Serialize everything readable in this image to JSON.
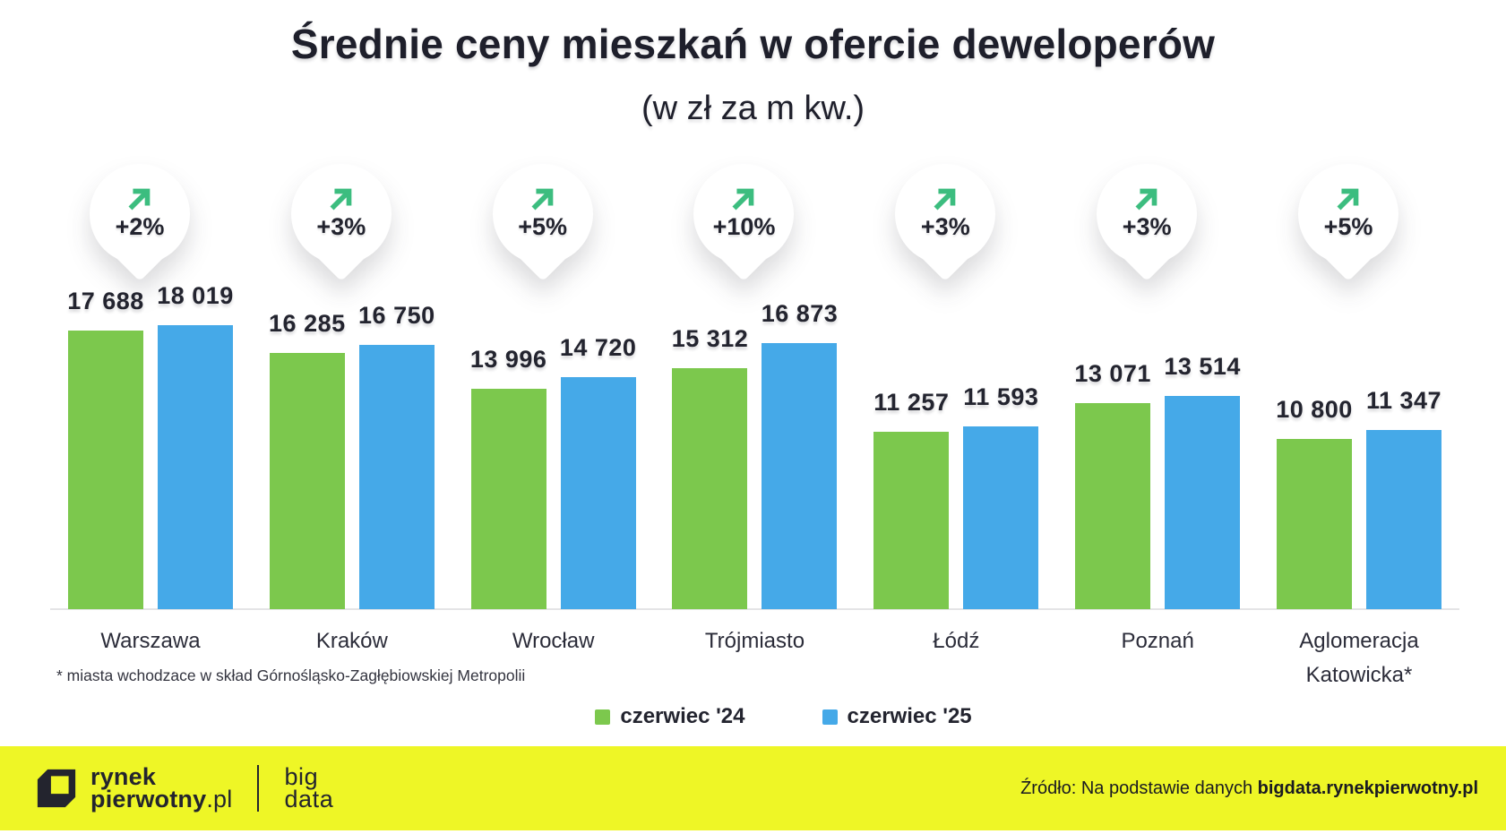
{
  "title": "Średnie ceny mieszkań w ofercie deweloperów",
  "subtitle": "(w zł za m kw.)",
  "footnote": "* miasta wchodzace w skład Górnośląsko-Zagłębiowskiej Metropolii",
  "legend": [
    {
      "label": "czerwiec '24",
      "color": "#7cc84d"
    },
    {
      "label": "czerwiec '25",
      "color": "#45a9e8"
    }
  ],
  "chart_data": {
    "type": "bar",
    "title": "Średnie ceny mieszkań w ofercie deweloperów (w zł za m kw.)",
    "categories": [
      "Warszawa",
      "Kraków",
      "Wrocław",
      "Trójmiasto",
      "Łódź",
      "Poznań",
      "Aglomeracja Katowicka*"
    ],
    "series": [
      {
        "name": "czerwiec '24",
        "color": "#7cc84d",
        "values": [
          17688,
          16285,
          13996,
          15312,
          11257,
          13071,
          10800
        ]
      },
      {
        "name": "czerwiec '25",
        "color": "#45a9e8",
        "values": [
          18019,
          16750,
          14720,
          16873,
          11593,
          13514,
          11347
        ]
      }
    ],
    "changes": [
      "+2%",
      "+3%",
      "+5%",
      "+10%",
      "+3%",
      "+3%",
      "+5%"
    ],
    "ylim": [
      0,
      19000
    ],
    "grid": false,
    "legend_position": "bottom",
    "value_label_format": "space-thousands"
  },
  "footer": {
    "logo": {
      "line1": "rynek",
      "line2_bold": "pierwotny",
      "line2_suffix": ".pl"
    },
    "bigdata": {
      "line1": "big",
      "line2": "data"
    },
    "source_prefix": "Źródło: Na podstawie danych ",
    "source_bold": "bigdata.rynekpierwotny.pl",
    "background": "#eef626"
  },
  "colors": {
    "bar_2024": "#7cc84d",
    "bar_2025": "#45a9e8",
    "trend_arrow": "#3cbd7f",
    "text_dark": "#23242f",
    "axis_line": "#e4e4e6",
    "footer_background": "#eef626",
    "pin_background": "#ffffff"
  }
}
